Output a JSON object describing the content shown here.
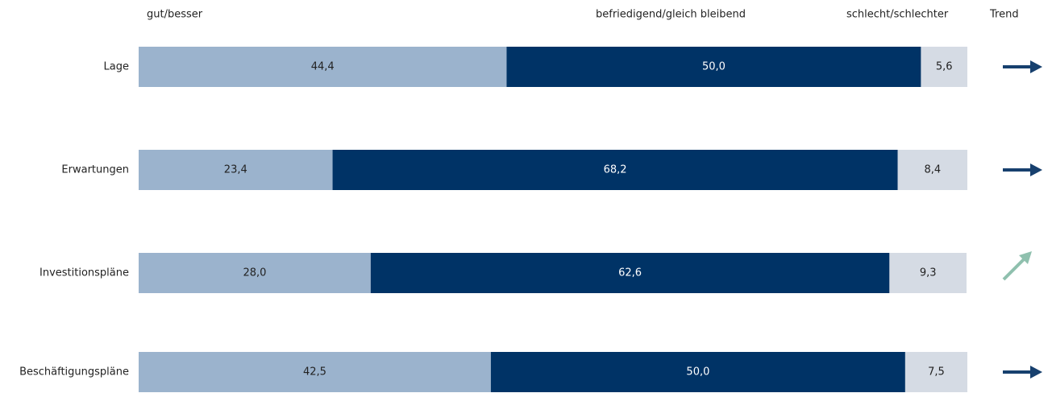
{
  "chart_data": {
    "type": "stacked-barh",
    "categories": [
      "Lage",
      "Erwartungen",
      "Investitionspläne",
      "Beschäftigungspläne"
    ],
    "series": [
      {
        "name": "gut/besser",
        "color": "#9bb3cd",
        "values": [
          44.4,
          23.4,
          28.0,
          42.5
        ],
        "value_labels": [
          "44,4",
          "23,4",
          "28,0",
          "42,5"
        ]
      },
      {
        "name": "befriedigend/gleich bleibend",
        "color": "#003366",
        "values": [
          50.0,
          68.2,
          62.6,
          50.0
        ],
        "value_labels": [
          "50,0",
          "68,2",
          "62,6",
          "50,0"
        ]
      },
      {
        "name": "schlecht/schlechter",
        "color": "#d5dbe4",
        "values": [
          5.6,
          8.4,
          9.3,
          7.5
        ],
        "value_labels": [
          "5,6",
          "8,4",
          "9,3",
          "7,5"
        ]
      }
    ],
    "xlim": [
      0,
      100
    ],
    "trend": {
      "label": "Trend",
      "directions": [
        "right",
        "right",
        "up-right",
        "right"
      ],
      "colors": [
        "#17406e",
        "#17406e",
        "#8fc0ae",
        "#17406e"
      ]
    }
  }
}
